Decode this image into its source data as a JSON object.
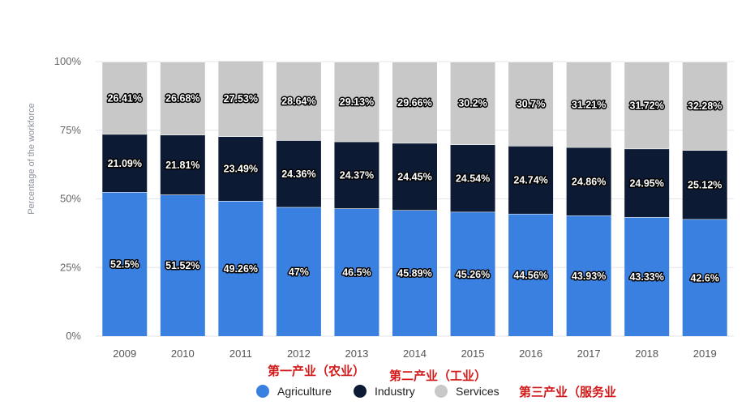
{
  "chart_data": {
    "type": "bar",
    "stacked": true,
    "ylabel": "Percentage of the workforce",
    "ylim": [
      0,
      100
    ],
    "yticks": [
      "0%",
      "25%",
      "50%",
      "75%",
      "100%"
    ],
    "categories": [
      "2009",
      "2010",
      "2011",
      "2012",
      "2013",
      "2014",
      "2015",
      "2016",
      "2017",
      "2018",
      "2019"
    ],
    "series": [
      {
        "name": "Agriculture",
        "color": "#3a80e0",
        "values": [
          52.5,
          51.52,
          49.26,
          47,
          46.5,
          45.89,
          45.26,
          44.56,
          43.93,
          43.33,
          42.6
        ],
        "labels": [
          "52.5%",
          "51.52%",
          "49.26%",
          "47%",
          "46.5%",
          "45.89%",
          "45.26%",
          "44.56%",
          "43.93%",
          "43.33%",
          "42.6%"
        ]
      },
      {
        "name": "Industry",
        "color": "#0d1a33",
        "values": [
          21.09,
          21.81,
          23.49,
          24.36,
          24.37,
          24.45,
          24.54,
          24.74,
          24.86,
          24.95,
          25.12
        ],
        "labels": [
          "21.09%",
          "21.81%",
          "23.49%",
          "24.36%",
          "24.37%",
          "24.45%",
          "24.54%",
          "24.74%",
          "24.86%",
          "24.95%",
          "25.12%"
        ]
      },
      {
        "name": "Services",
        "color": "#c8c8c8",
        "values": [
          26.41,
          26.68,
          27.53,
          28.64,
          29.13,
          29.66,
          30.2,
          30.7,
          31.21,
          31.72,
          32.28
        ],
        "labels": [
          "26.41%",
          "26.68%",
          "27.53%",
          "28.64%",
          "29.13%",
          "29.66%",
          "30.2%",
          "30.7%",
          "31.21%",
          "31.72%",
          "32.28%"
        ]
      }
    ],
    "legend": [
      "Agriculture",
      "Industry",
      "Services"
    ],
    "legend_position": "bottom",
    "annotations": [
      "第一产业（农业）",
      "第二产业（工业）",
      "第三产业（服务业"
    ],
    "annotation_color": "#d21a1a"
  }
}
